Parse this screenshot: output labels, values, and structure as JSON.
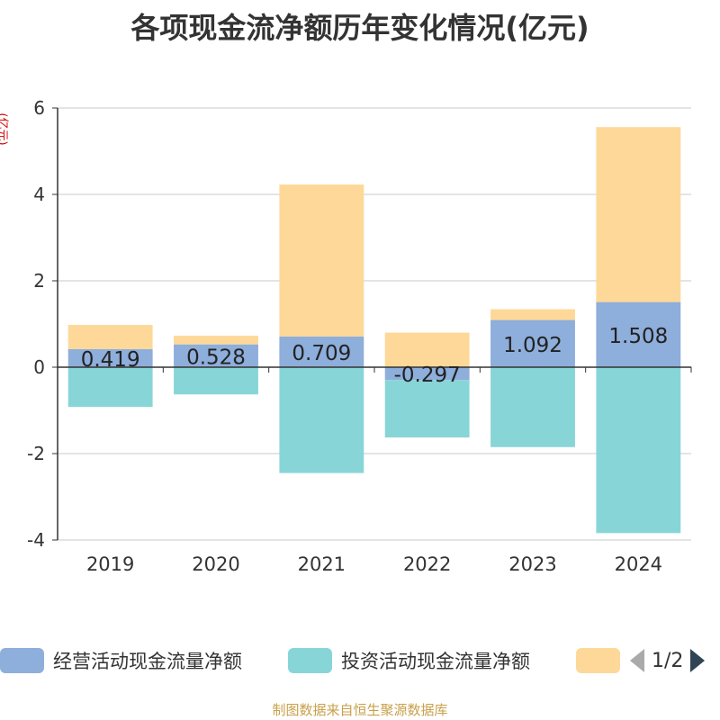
{
  "chart_data": {
    "type": "bar",
    "stacked": true,
    "title": "各项现金流净额历年变化情况(亿元)",
    "ylabel": "(亿元)",
    "xlabel": "",
    "ylim": [
      -4,
      6
    ],
    "yticks": [
      6,
      4,
      2,
      0,
      -2,
      -4
    ],
    "categories": [
      "2019",
      "2020",
      "2021",
      "2022",
      "2023",
      "2024"
    ],
    "series": [
      {
        "name": "经营活动现金流量净额",
        "color": "#8eaedb",
        "values": [
          0.419,
          0.528,
          0.709,
          -0.297,
          1.092,
          1.508
        ],
        "labels": [
          "0.419",
          "0.528",
          "0.709",
          "-0.297",
          "1.092",
          "1.508"
        ]
      },
      {
        "name": "投资活动现金流量净额",
        "color": "#88d5d8",
        "values": [
          -0.92,
          -0.63,
          -2.45,
          -1.33,
          -1.85,
          -3.84
        ]
      },
      {
        "name": "",
        "color": "#fdd898",
        "values": [
          0.56,
          0.2,
          3.52,
          0.8,
          0.25,
          4.05
        ]
      }
    ],
    "legend": {
      "position": "bottom",
      "page": "1/2"
    },
    "grid": true
  },
  "source": "制图数据来自恒生聚源数据库"
}
